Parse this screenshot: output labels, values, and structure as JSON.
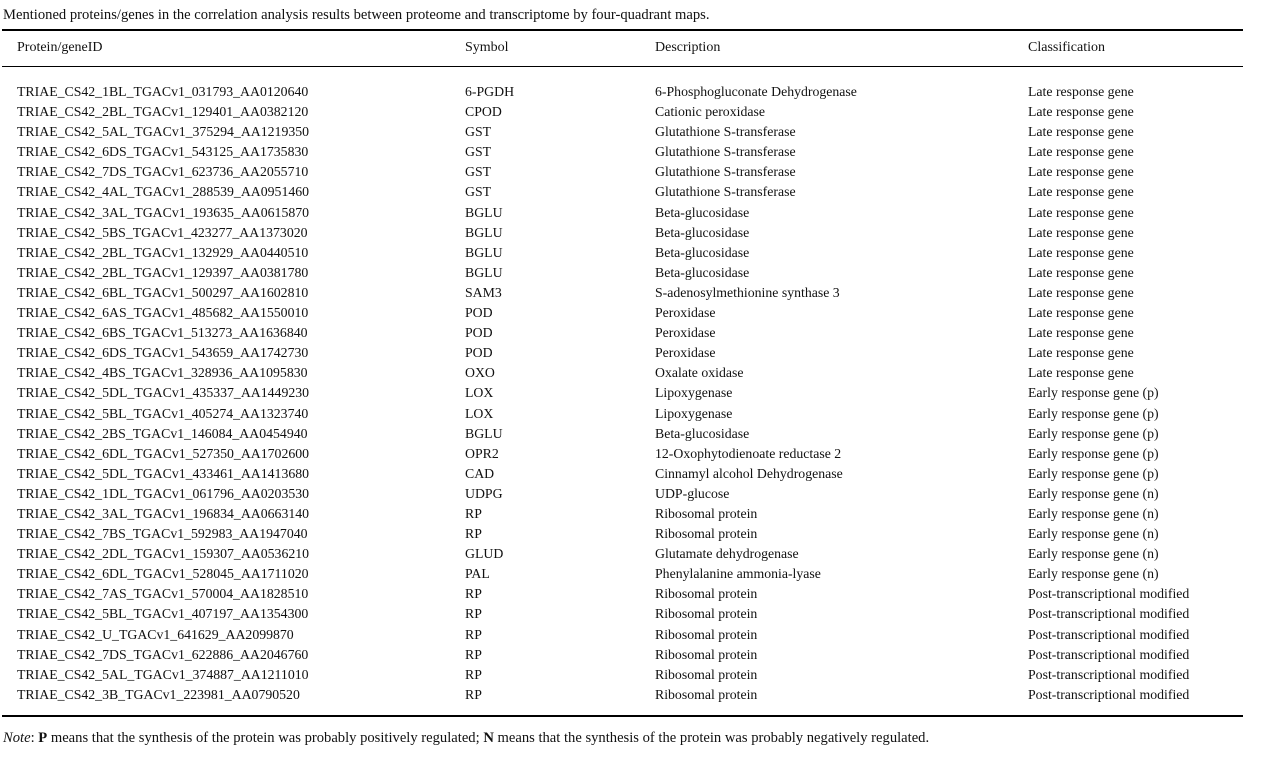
{
  "title": "Mentioned proteins/genes in the correlation analysis results between proteome and transcriptome by four-quadrant maps.",
  "table": {
    "columns": [
      "Protein/geneID",
      "Symbol",
      "Description",
      "Classification"
    ],
    "rows": [
      [
        "TRIAE_CS42_1BL_TGACv1_031793_AA0120640",
        "6-PGDH",
        "6-Phosphogluconate Dehydrogenase",
        "Late response gene"
      ],
      [
        "TRIAE_CS42_2BL_TGACv1_129401_AA0382120",
        "CPOD",
        "Cationic peroxidase",
        "Late response gene"
      ],
      [
        "TRIAE_CS42_5AL_TGACv1_375294_AA1219350",
        "GST",
        "Glutathione S-transferase",
        "Late response gene"
      ],
      [
        "TRIAE_CS42_6DS_TGACv1_543125_AA1735830",
        "GST",
        "Glutathione S-transferase",
        "Late response gene"
      ],
      [
        "TRIAE_CS42_7DS_TGACv1_623736_AA2055710",
        "GST",
        "Glutathione S-transferase",
        "Late response gene"
      ],
      [
        "TRIAE_CS42_4AL_TGACv1_288539_AA0951460",
        "GST",
        "Glutathione S-transferase",
        "Late response gene"
      ],
      [
        "TRIAE_CS42_3AL_TGACv1_193635_AA0615870",
        "BGLU",
        "Beta-glucosidase",
        "Late response gene"
      ],
      [
        "TRIAE_CS42_5BS_TGACv1_423277_AA1373020",
        "BGLU",
        "Beta-glucosidase",
        "Late response gene"
      ],
      [
        "TRIAE_CS42_2BL_TGACv1_132929_AA0440510",
        "BGLU",
        "Beta-glucosidase",
        "Late response gene"
      ],
      [
        "TRIAE_CS42_2BL_TGACv1_129397_AA0381780",
        "BGLU",
        "Beta-glucosidase",
        "Late response gene"
      ],
      [
        "TRIAE_CS42_6BL_TGACv1_500297_AA1602810",
        "SAM3",
        "S-adenosylmethionine synthase 3",
        "Late response gene"
      ],
      [
        "TRIAE_CS42_6AS_TGACv1_485682_AA1550010",
        "POD",
        "Peroxidase",
        "Late response gene"
      ],
      [
        "TRIAE_CS42_6BS_TGACv1_513273_AA1636840",
        "POD",
        "Peroxidase",
        "Late response gene"
      ],
      [
        "TRIAE_CS42_6DS_TGACv1_543659_AA1742730",
        "POD",
        "Peroxidase",
        "Late response gene"
      ],
      [
        "TRIAE_CS42_4BS_TGACv1_328936_AA1095830",
        "OXO",
        "Oxalate oxidase",
        "Late response gene"
      ],
      [
        "TRIAE_CS42_5DL_TGACv1_435337_AA1449230",
        "LOX",
        "Lipoxygenase",
        "Early response gene (p)"
      ],
      [
        "TRIAE_CS42_5BL_TGACv1_405274_AA1323740",
        "LOX",
        "Lipoxygenase",
        "Early response gene (p)"
      ],
      [
        "TRIAE_CS42_2BS_TGACv1_146084_AA0454940",
        "BGLU",
        "Beta-glucosidase",
        "Early response gene (p)"
      ],
      [
        "TRIAE_CS42_6DL_TGACv1_527350_AA1702600",
        "OPR2",
        "12-Oxophytodienoate reductase 2",
        "Early response gene (p)"
      ],
      [
        "TRIAE_CS42_5DL_TGACv1_433461_AA1413680",
        "CAD",
        "Cinnamyl alcohol Dehydrogenase",
        "Early response gene (p)"
      ],
      [
        "TRIAE_CS42_1DL_TGACv1_061796_AA0203530",
        "UDPG",
        "UDP-glucose",
        "Early response gene (n)"
      ],
      [
        "TRIAE_CS42_3AL_TGACv1_196834_AA0663140",
        "RP",
        "Ribosomal protein",
        "Early response gene (n)"
      ],
      [
        "TRIAE_CS42_7BS_TGACv1_592983_AA1947040",
        "RP",
        "Ribosomal protein",
        "Early response gene (n)"
      ],
      [
        "TRIAE_CS42_2DL_TGACv1_159307_AA0536210",
        "GLUD",
        "Glutamate dehydrogenase",
        "Early response gene (n)"
      ],
      [
        "TRIAE_CS42_6DL_TGACv1_528045_AA1711020",
        "PAL",
        "Phenylalanine ammonia-lyase",
        "Early response gene (n)"
      ],
      [
        "TRIAE_CS42_7AS_TGACv1_570004_AA1828510",
        "RP",
        "Ribosomal protein",
        "Post-transcriptional modified"
      ],
      [
        "TRIAE_CS42_5BL_TGACv1_407197_AA1354300",
        "RP",
        "Ribosomal protein",
        "Post-transcriptional modified"
      ],
      [
        "TRIAE_CS42_U_TGACv1_641629_AA2099870",
        "RP",
        "Ribosomal protein",
        "Post-transcriptional modified"
      ],
      [
        "TRIAE_CS42_7DS_TGACv1_622886_AA2046760",
        "RP",
        "Ribosomal protein",
        "Post-transcriptional modified"
      ],
      [
        "TRIAE_CS42_5AL_TGACv1_374887_AA1211010",
        "RP",
        "Ribosomal protein",
        "Post-transcriptional modified"
      ],
      [
        "TRIAE_CS42_3B_TGACv1_223981_AA0790520",
        "RP",
        "Ribosomal protein",
        "Post-transcriptional modified"
      ]
    ]
  },
  "note": {
    "label": "Note",
    "segments": [
      {
        "text": ": ",
        "bold": false
      },
      {
        "text": "P",
        "bold": true
      },
      {
        "text": " means that the synthesis of the protein was probably positively regulated; ",
        "bold": false
      },
      {
        "text": "N",
        "bold": true
      },
      {
        "text": " means that the synthesis of the protein was probably negatively regulated.",
        "bold": false
      }
    ]
  }
}
